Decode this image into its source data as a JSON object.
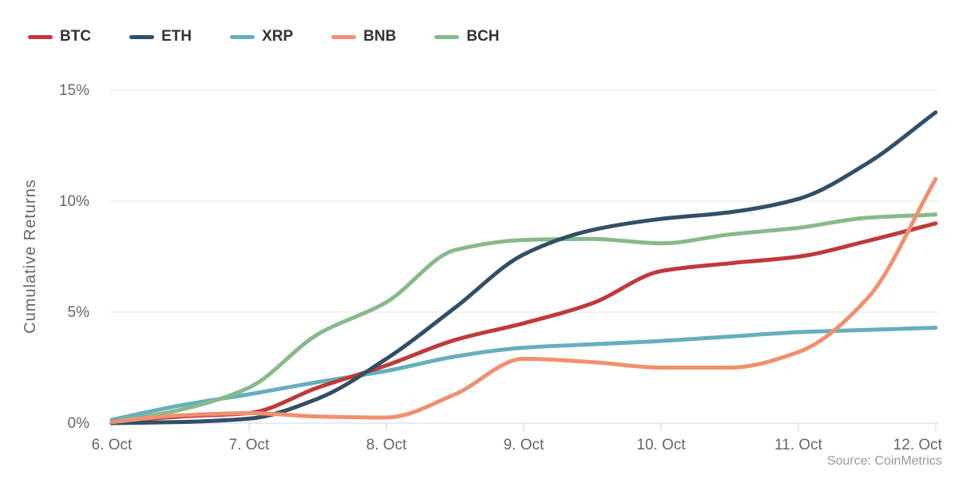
{
  "chart_data": {
    "type": "line",
    "title": "",
    "ylabel": "Cumulative Returns",
    "source_note": "Source: CoinMetrics",
    "legend_position": "top-left",
    "grid": "horizontal",
    "x_tick_labels": [
      "6. Oct",
      "7. Oct",
      "8. Oct",
      "9. Oct",
      "10. Oct",
      "11. Oct",
      "12. Oct"
    ],
    "x_days": [
      0,
      0.5,
      1,
      1.5,
      2,
      2.5,
      3,
      3.5,
      4,
      4.5,
      5,
      5.5,
      6
    ],
    "y_ticks_pct": [
      0,
      5,
      10,
      15
    ],
    "y_tick_labels": [
      "0%",
      "5%",
      "10%",
      "15%"
    ],
    "ylim_pct": [
      0,
      15.3
    ],
    "series": [
      {
        "name": "BTC",
        "color": "#c0393b",
        "values": [
          0.05,
          0.3,
          0.45,
          1.6,
          2.6,
          3.75,
          4.5,
          5.4,
          6.85,
          7.2,
          7.5,
          8.2,
          9.0
        ]
      },
      {
        "name": "ETH",
        "color": "#324f66",
        "values": [
          0.0,
          0.05,
          0.2,
          1.1,
          2.9,
          5.2,
          7.6,
          8.7,
          9.2,
          9.5,
          10.1,
          11.7,
          14.0
        ]
      },
      {
        "name": "XRP",
        "color": "#65afbc",
        "values": [
          0.15,
          0.8,
          1.3,
          1.85,
          2.35,
          3.0,
          3.4,
          3.55,
          3.7,
          3.9,
          4.1,
          4.2,
          4.3
        ]
      },
      {
        "name": "BNB",
        "color": "#f0906e",
        "values": [
          0.05,
          0.35,
          0.45,
          0.3,
          0.25,
          1.3,
          2.9,
          2.75,
          2.5,
          2.5,
          3.2,
          5.6,
          11.0
        ]
      },
      {
        "name": "BCH",
        "color": "#87b98c",
        "values": [
          0.05,
          0.6,
          1.6,
          4.0,
          5.45,
          7.8,
          8.25,
          8.3,
          8.1,
          8.5,
          8.8,
          9.25,
          9.4
        ]
      }
    ],
    "z_order": [
      "XRP",
      "BCH",
      "BTC",
      "ETH",
      "BNB"
    ],
    "colors": {
      "background": "#ffffff",
      "gridline": "#e6e6e6",
      "axis_line": "#ccd6eb",
      "axis_label": "#666666",
      "axis_title": "#666666",
      "legend_text": "#333333",
      "source_text": "#999999"
    }
  }
}
